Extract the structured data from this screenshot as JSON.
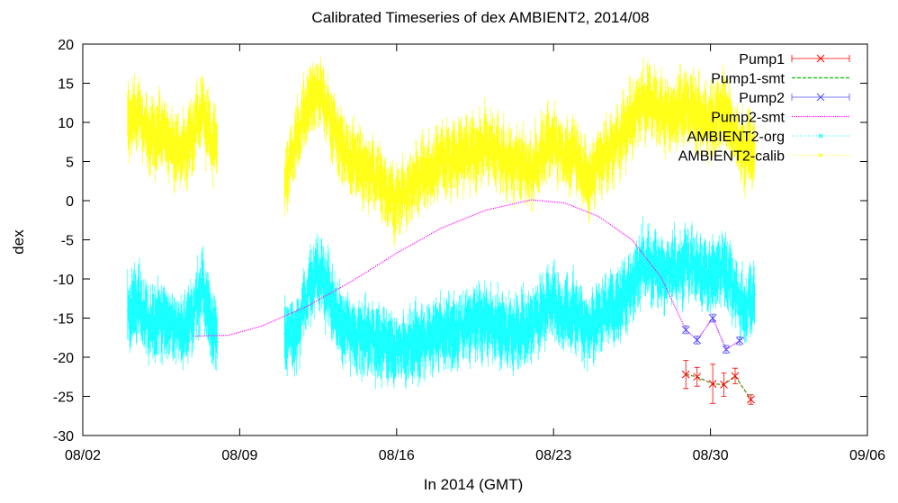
{
  "chart_data": {
    "type": "line",
    "title": "Calibrated Timeseries of dex AMBIENT2, 2014/08",
    "xlabel": "In 2014 (GMT)",
    "ylabel": "dex",
    "xlim": [
      "2014-08-02",
      "2014-09-06"
    ],
    "ylim": [
      -30,
      20
    ],
    "x_ticks": [
      "08/02",
      "08/09",
      "08/16",
      "08/23",
      "08/30",
      "09/06"
    ],
    "y_ticks": [
      "20",
      "15",
      "10",
      "5",
      "0",
      "-5",
      "-10",
      "-15",
      "-20",
      "-25",
      "-30"
    ],
    "grid": false,
    "legend": "top-right",
    "series": [
      {
        "name": "Pump1",
        "color": "#ff0000",
        "marker": "x",
        "style": "errorbars",
        "points": [
          {
            "x": "2014-08-28.9",
            "y": -22.2,
            "err": 1.8
          },
          {
            "x": "2014-08-29.4",
            "y": -22.5,
            "err": 1.2
          },
          {
            "x": "2014-08-30.1",
            "y": -23.4,
            "err": 2.5
          },
          {
            "x": "2014-08-30.6",
            "y": -23.5,
            "err": 1.5
          },
          {
            "x": "2014-08-31.1",
            "y": -22.4,
            "err": 1.0
          },
          {
            "x": "2014-08-31.8",
            "y": -25.4,
            "err": 0.6
          }
        ]
      },
      {
        "name": "Pump1-smt",
        "color": "#00c000",
        "style": "dashed-line",
        "points": [
          {
            "x": "2014-08-28.9",
            "y": -22.2
          },
          {
            "x": "2014-08-29.4",
            "y": -22.5
          },
          {
            "x": "2014-08-30.1",
            "y": -23.4
          },
          {
            "x": "2014-08-30.6",
            "y": -23.5
          },
          {
            "x": "2014-08-31.1",
            "y": -22.4
          },
          {
            "x": "2014-08-31.8",
            "y": -25.4
          }
        ]
      },
      {
        "name": "Pump2",
        "color": "#5050ff",
        "marker": "x",
        "style": "errorbars",
        "points": [
          {
            "x": "2014-08-28.9",
            "y": -16.5,
            "err": 0.5
          },
          {
            "x": "2014-08-29.4",
            "y": -17.8,
            "err": 0.5
          },
          {
            "x": "2014-08-30.1",
            "y": -15.0,
            "err": 0.5
          },
          {
            "x": "2014-08-30.7",
            "y": -19.0,
            "err": 0.5
          },
          {
            "x": "2014-08-31.3",
            "y": -17.9,
            "err": 0.5
          }
        ]
      },
      {
        "name": "Pump2-smt",
        "color": "#ff00ff",
        "style": "dotted-line",
        "points": [
          {
            "x": "2014-08-07.0",
            "y": -17.3
          },
          {
            "x": "2014-08-08.5",
            "y": -17.2
          },
          {
            "x": "2014-08-10.0",
            "y": -16.0
          },
          {
            "x": "2014-08-12.0",
            "y": -13.5
          },
          {
            "x": "2014-08-14.0",
            "y": -10.3
          },
          {
            "x": "2014-08-16.0",
            "y": -6.7
          },
          {
            "x": "2014-08-18.0",
            "y": -3.5
          },
          {
            "x": "2014-08-20.0",
            "y": -1.2
          },
          {
            "x": "2014-08-22.0",
            "y": 0.1
          },
          {
            "x": "2014-08-23.5",
            "y": -0.3
          },
          {
            "x": "2014-08-25.0",
            "y": -2.0
          },
          {
            "x": "2014-08-26.5",
            "y": -5.0
          },
          {
            "x": "2014-08-27.8",
            "y": -9.8
          },
          {
            "x": "2014-08-28.9",
            "y": -16.5
          },
          {
            "x": "2014-08-29.4",
            "y": -17.8
          },
          {
            "x": "2014-08-30.1",
            "y": -15.0
          },
          {
            "x": "2014-08-30.7",
            "y": -19.0
          },
          {
            "x": "2014-08-31.3",
            "y": -17.9
          },
          {
            "x": "2014-08-31.5",
            "y": -17.5
          }
        ]
      },
      {
        "name": "AMBIENT2-org",
        "color": "#00ffff",
        "style": "noisy-band",
        "segments": [
          {
            "points": [
              {
                "x": "2014-08-04.0",
                "y": -14
              },
              {
                "x": "2014-08-04.5",
                "y": -13
              },
              {
                "x": "2014-08-05.0",
                "y": -16
              },
              {
                "x": "2014-08-05.5",
                "y": -15
              },
              {
                "x": "2014-08-06.0",
                "y": -16
              },
              {
                "x": "2014-08-06.5",
                "y": -17
              },
              {
                "x": "2014-08-07.0",
                "y": -14
              },
              {
                "x": "2014-08-07.3",
                "y": -11
              },
              {
                "x": "2014-08-07.6",
                "y": -14
              },
              {
                "x": "2014-08-08.0",
                "y": -18
              }
            ]
          },
          {
            "points": [
              {
                "x": "2014-08-11.0",
                "y": -17
              },
              {
                "x": "2014-08-11.5",
                "y": -18
              },
              {
                "x": "2014-08-12.0",
                "y": -12
              },
              {
                "x": "2014-08-12.5",
                "y": -9
              },
              {
                "x": "2014-08-13.0",
                "y": -12
              },
              {
                "x": "2014-08-13.5",
                "y": -16
              },
              {
                "x": "2014-08-14.0",
                "y": -17
              },
              {
                "x": "2014-08-15.0",
                "y": -18
              },
              {
                "x": "2014-08-16.0",
                "y": -19
              },
              {
                "x": "2014-08-17.0",
                "y": -18
              },
              {
                "x": "2014-08-18.0",
                "y": -17
              },
              {
                "x": "2014-08-19.0",
                "y": -16
              },
              {
                "x": "2014-08-20.0",
                "y": -15
              },
              {
                "x": "2014-08-21.0",
                "y": -17
              },
              {
                "x": "2014-08-22.0",
                "y": -16
              },
              {
                "x": "2014-08-22.5",
                "y": -14
              },
              {
                "x": "2014-08-23.0",
                "y": -13
              },
              {
                "x": "2014-08-23.5",
                "y": -15
              },
              {
                "x": "2014-08-24.0",
                "y": -14
              },
              {
                "x": "2014-08-24.5",
                "y": -17
              },
              {
                "x": "2014-08-25.0",
                "y": -15
              },
              {
                "x": "2014-08-26.0",
                "y": -13
              },
              {
                "x": "2014-08-27.0",
                "y": -8
              },
              {
                "x": "2014-08-28.0",
                "y": -9
              },
              {
                "x": "2014-08-29.0",
                "y": -8
              },
              {
                "x": "2014-08-30.0",
                "y": -10
              },
              {
                "x": "2014-08-30.5",
                "y": -8
              },
              {
                "x": "2014-08-31.0",
                "y": -11
              },
              {
                "x": "2014-08-31.5",
                "y": -14
              },
              {
                "x": "2014-09-01.0",
                "y": -12
              }
            ]
          }
        ]
      },
      {
        "name": "AMBIENT2-calib",
        "color": "#ffff00",
        "style": "noisy-band",
        "segments": [
          {
            "points": [
              {
                "x": "2014-08-04.0",
                "y": 10
              },
              {
                "x": "2014-08-04.5",
                "y": 11
              },
              {
                "x": "2014-08-05.0",
                "y": 8
              },
              {
                "x": "2014-08-05.5",
                "y": 9
              },
              {
                "x": "2014-08-06.0",
                "y": 7
              },
              {
                "x": "2014-08-06.5",
                "y": 6
              },
              {
                "x": "2014-08-07.0",
                "y": 9
              },
              {
                "x": "2014-08-07.3",
                "y": 12
              },
              {
                "x": "2014-08-07.6",
                "y": 9
              },
              {
                "x": "2014-08-08.0",
                "y": 6
              }
            ]
          },
          {
            "points": [
              {
                "x": "2014-08-11.0",
                "y": 2
              },
              {
                "x": "2014-08-11.5",
                "y": 8
              },
              {
                "x": "2014-08-12.0",
                "y": 12
              },
              {
                "x": "2014-08-12.5",
                "y": 14
              },
              {
                "x": "2014-08-13.0",
                "y": 11
              },
              {
                "x": "2014-08-13.5",
                "y": 7
              },
              {
                "x": "2014-08-14.0",
                "y": 5
              },
              {
                "x": "2014-08-15.0",
                "y": 3
              },
              {
                "x": "2014-08-16.0",
                "y": 0
              },
              {
                "x": "2014-08-17.0",
                "y": 3
              },
              {
                "x": "2014-08-18.0",
                "y": 5
              },
              {
                "x": "2014-08-19.0",
                "y": 6
              },
              {
                "x": "2014-08-20.0",
                "y": 7
              },
              {
                "x": "2014-08-21.0",
                "y": 5
              },
              {
                "x": "2014-08-22.0",
                "y": 4
              },
              {
                "x": "2014-08-22.5",
                "y": 6
              },
              {
                "x": "2014-08-23.0",
                "y": 8
              },
              {
                "x": "2014-08-23.5",
                "y": 5
              },
              {
                "x": "2014-08-24.0",
                "y": 6
              },
              {
                "x": "2014-08-24.5",
                "y": 2
              },
              {
                "x": "2014-08-25.0",
                "y": 5
              },
              {
                "x": "2014-08-26.0",
                "y": 8
              },
              {
                "x": "2014-08-27.0",
                "y": 13
              },
              {
                "x": "2014-08-28.0",
                "y": 11
              },
              {
                "x": "2014-08-29.0",
                "y": 12
              },
              {
                "x": "2014-08-30.0",
                "y": 10
              },
              {
                "x": "2014-08-30.5",
                "y": 12
              },
              {
                "x": "2014-08-31.0",
                "y": 9
              },
              {
                "x": "2014-08-31.5",
                "y": 6
              },
              {
                "x": "2014-09-01.0",
                "y": 7
              }
            ]
          }
        ]
      }
    ]
  }
}
